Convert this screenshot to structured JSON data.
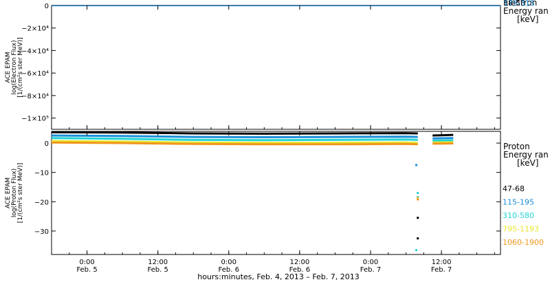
{
  "chart_data": [
    {
      "type": "line",
      "panel": "top",
      "ylabel_lines": [
        "ACE EPAM",
        "log(Electron Flux)",
        "[1/(cm²s ster MeV)]"
      ],
      "ylim": [
        -110000,
        0
      ],
      "y_ticks": [
        0,
        -20000,
        -40000,
        -60000,
        -80000,
        -100000
      ],
      "y_tick_labels": [
        "0",
        "−2×10⁴",
        "−4×10⁴",
        "−6×10⁴",
        "−8×10⁴",
        "−1×10⁵"
      ],
      "legend_title": [
        "Electron",
        "Energy ran",
        "[keV]"
      ],
      "series": [
        {
          "name": "38-53",
          "color": "#000000",
          "y": [
            0,
            0
          ]
        },
        {
          "name": "175-315",
          "color": "#1a8fd8",
          "y": [
            0,
            0
          ]
        }
      ],
      "x": [
        "2013-02-04T18:00",
        "2013-02-07T18:00"
      ]
    },
    {
      "type": "line",
      "panel": "bottom",
      "ylabel_lines": [
        "ACE EPAM",
        "log(Proton Flux)",
        "[1/(cm²s ster MeV)]"
      ],
      "ylim": [
        -38,
        4
      ],
      "y_ticks": [
        0,
        -10,
        -20,
        -30
      ],
      "y_tick_labels": [
        "0",
        "−10",
        "−20",
        "−30"
      ],
      "legend_title": [
        "Proton",
        "Energy ran",
        "[keV]"
      ],
      "series": [
        {
          "name": "47-68",
          "color": "#000000",
          "x": [
            "2013-02-04T18:00",
            "2013-02-05T06:00",
            "2013-02-05T18:00",
            "2013-02-06T06:00",
            "2013-02-06T18:00",
            "2013-02-07T06:00",
            "2013-02-07T08:00",
            "2013-02-07T10:30",
            "2013-02-07T14:00"
          ],
          "y": [
            3.7,
            3.6,
            3.3,
            3.2,
            3.3,
            3.4,
            3.3,
            2.6,
            2.8
          ],
          "dropouts": [
            {
              "x": "2013-02-07T08:00",
              "y": -25.5
            },
            {
              "x": "2013-02-07T08:00",
              "y": -32.5
            }
          ]
        },
        {
          "name": "115-195",
          "color": "#1a8fd8",
          "x": [
            "2013-02-04T18:00",
            "2013-02-05T06:00",
            "2013-02-05T18:00",
            "2013-02-06T06:00",
            "2013-02-06T18:00",
            "2013-02-07T06:00",
            "2013-02-07T08:00",
            "2013-02-07T10:30",
            "2013-02-07T14:00"
          ],
          "y": [
            2.6,
            2.4,
            2.1,
            2.0,
            2.1,
            2.2,
            2.1,
            1.6,
            1.7
          ],
          "dropouts": [
            {
              "x": "2013-02-07T07:45",
              "y": -7.5
            },
            {
              "x": "2013-02-07T08:00",
              "y": -18.5
            }
          ]
        },
        {
          "name": "310-580",
          "color": "#22d3d3",
          "x": [
            "2013-02-04T18:00",
            "2013-02-05T06:00",
            "2013-02-05T18:00",
            "2013-02-06T06:00",
            "2013-02-06T18:00",
            "2013-02-07T06:00",
            "2013-02-07T08:00",
            "2013-02-07T10:30",
            "2013-02-07T14:00"
          ],
          "y": [
            1.7,
            1.5,
            1.1,
            1.0,
            1.1,
            1.2,
            1.1,
            0.8,
            0.9
          ],
          "dropouts": [
            {
              "x": "2013-02-07T07:45",
              "y": -36.5
            },
            {
              "x": "2013-02-07T08:00",
              "y": -17.0
            }
          ]
        },
        {
          "name": "795-1193",
          "color": "#e6e62c",
          "x": [
            "2013-02-04T18:00",
            "2013-02-05T06:00",
            "2013-02-05T18:00",
            "2013-02-06T06:00",
            "2013-02-06T18:00",
            "2013-02-07T06:00",
            "2013-02-07T08:00",
            "2013-02-07T10:30",
            "2013-02-07T14:00"
          ],
          "y": [
            0.7,
            0.5,
            0.2,
            0.1,
            0.1,
            0.2,
            0.1,
            0.2,
            0.3
          ],
          "dropouts": [
            {
              "x": "2013-02-07T08:00",
              "y": -18.8
            }
          ]
        },
        {
          "name": "1060-1900",
          "color": "#f0961e",
          "x": [
            "2013-02-04T18:00",
            "2013-02-05T06:00",
            "2013-02-05T18:00",
            "2013-02-06T06:00",
            "2013-02-06T18:00",
            "2013-02-07T06:00",
            "2013-02-07T08:00",
            "2013-02-07T10:30",
            "2013-02-07T14:00"
          ],
          "y": [
            0.2,
            0.0,
            -0.3,
            -0.4,
            -0.4,
            -0.3,
            -0.4,
            -0.2,
            -0.1
          ],
          "dropouts": [
            {
              "x": "2013-02-07T08:00",
              "y": -19.2
            }
          ]
        }
      ]
    }
  ],
  "x_axis": {
    "range": [
      "2013-02-04T18:00",
      "2013-02-07T22:00"
    ],
    "ticks": [
      {
        "time": "0:00",
        "date": "Feb. 5"
      },
      {
        "time": "12:00",
        "date": "Feb. 5"
      },
      {
        "time": "0:00",
        "date": "Feb. 6"
      },
      {
        "time": "12:00",
        "date": "Feb. 6"
      },
      {
        "time": "0:00",
        "date": "Feb. 7"
      },
      {
        "time": "12:00",
        "date": "Feb. 7"
      }
    ],
    "title": "hours:minutes, Feb.  4, 2013 – Feb.  7, 2013"
  }
}
